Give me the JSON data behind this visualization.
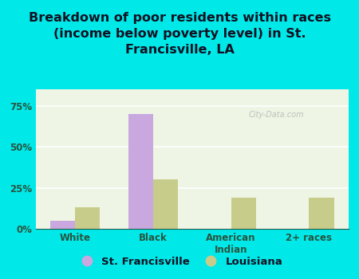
{
  "title": "Breakdown of poor residents within races\n(income below poverty level) in St.\nFrancisville, LA",
  "categories": [
    "White",
    "Black",
    "American\nIndian",
    "2+ races"
  ],
  "city_values": [
    5.0,
    70.0,
    0.0,
    0.0
  ],
  "state_values": [
    13.0,
    30.0,
    19.0,
    19.0
  ],
  "city_color": "#c9a8e0",
  "state_color": "#c8cc8a",
  "background_color": "#00e8e8",
  "plot_bg_color": "#eef5e4",
  "ylim": [
    0,
    85
  ],
  "yticks": [
    0,
    25,
    50,
    75
  ],
  "ytick_labels": [
    "0%",
    "25%",
    "50%",
    "75%"
  ],
  "city_label": "St. Francisville",
  "state_label": "Louisiana",
  "bar_width": 0.32,
  "title_fontsize": 11.5,
  "tick_fontsize": 8.5,
  "legend_fontsize": 9.5,
  "watermark": "City-Data.com",
  "title_color": "#111122",
  "tick_color": "#2a5540",
  "grid_color": "#ffffff"
}
